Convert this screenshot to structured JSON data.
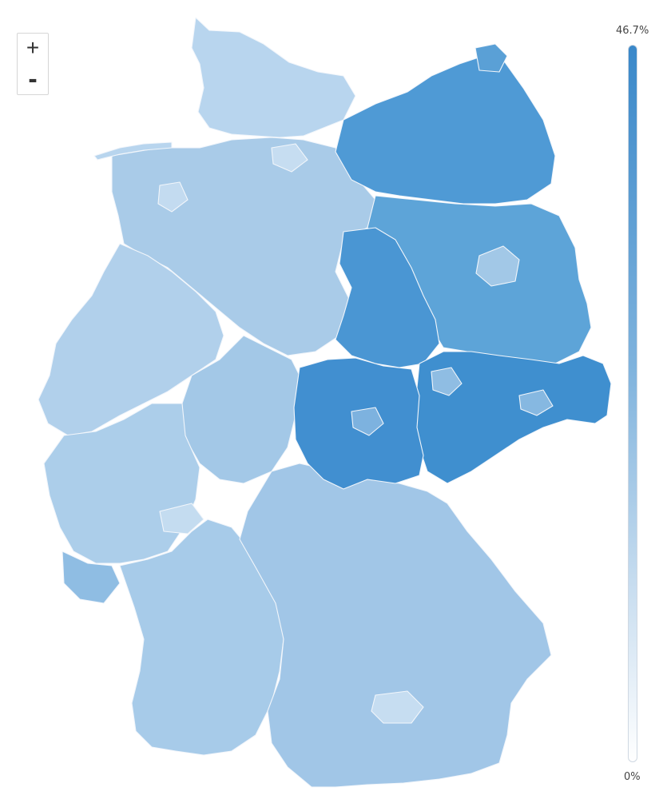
{
  "legend": {
    "max_label": "46.7%",
    "min_label": "0%",
    "max_value": 46.7,
    "min_value": 0,
    "color_high": "#3a88c9",
    "color_low": "#ffffff"
  },
  "zoom": {
    "in_label": "+",
    "out_label": "-"
  },
  "map": {
    "country": "Germany",
    "colors": {
      "east_high": "#3f8fcf",
      "east_mid": "#5aa0d6",
      "west_base": "#a9cbe8",
      "west_light": "#bcd7ee",
      "west_mid": "#9bc3e5",
      "border": "#f2f6fb"
    }
  }
}
